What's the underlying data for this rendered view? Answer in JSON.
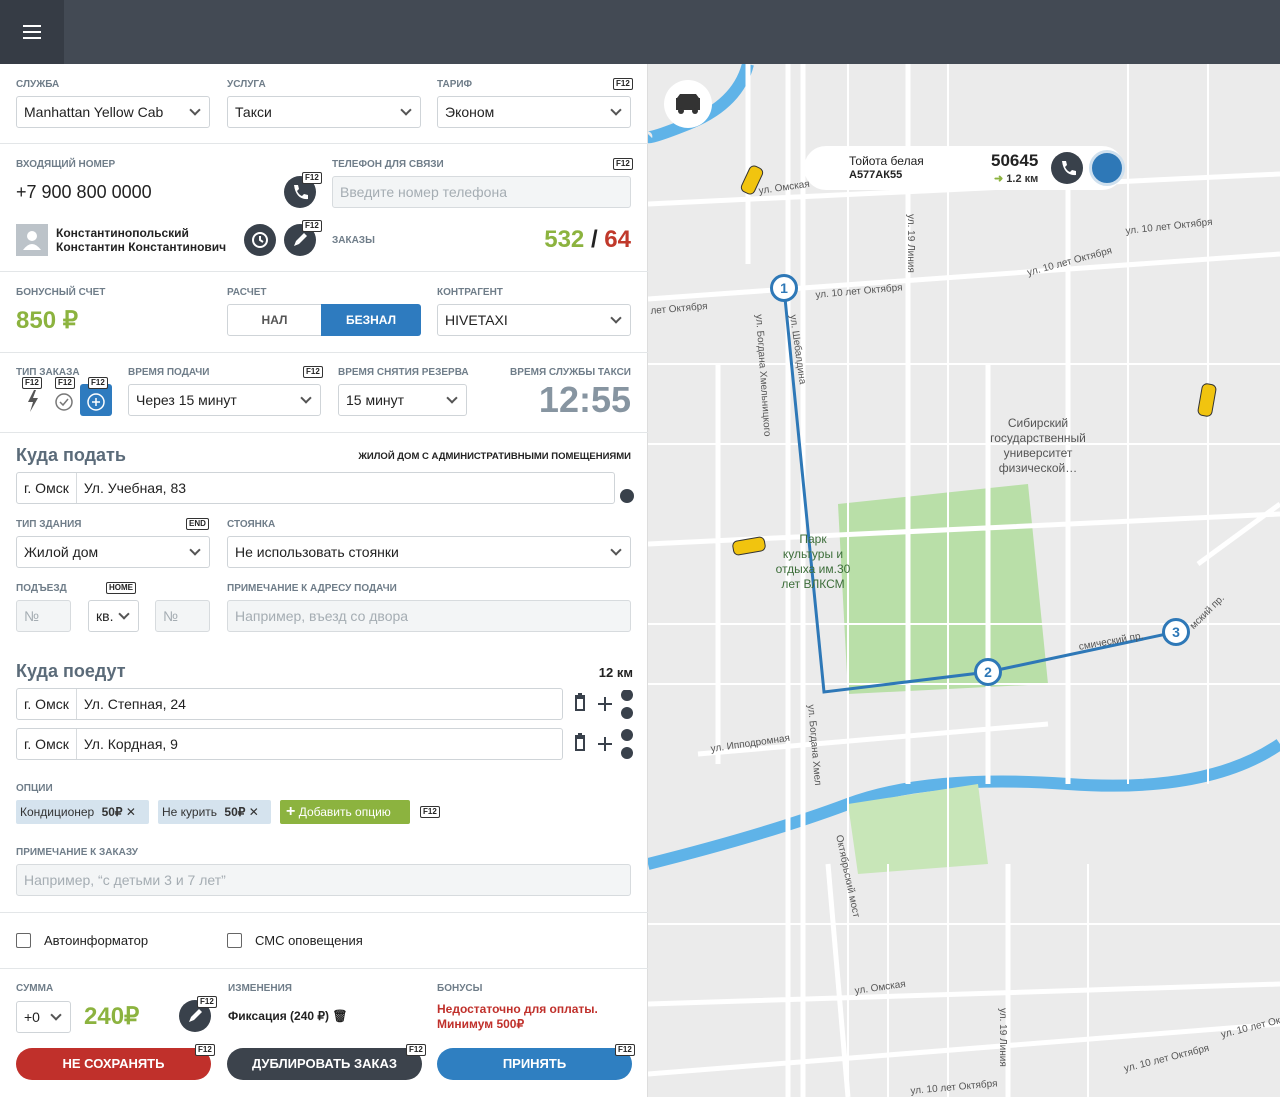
{
  "service": {
    "label": "СЛУЖБА",
    "value": "Manhattan Yellow Cab"
  },
  "usluga": {
    "label": "УСЛУГА",
    "value": "Такси"
  },
  "tariff": {
    "label": "ТАРИФ",
    "value": "Эконом",
    "hotkey": "F12"
  },
  "incoming": {
    "label": "ВХОДЯЩИЙ НОМЕР",
    "value": "+7 900 800 0000",
    "hotkey": "F12"
  },
  "contact_phone": {
    "label": "ТЕЛЕФОН ДЛЯ СВЯЗИ",
    "placeholder": "Введите номер телефона",
    "hotkey": "F12"
  },
  "client": {
    "name": [
      "Константинопольский",
      "Константин Константинович"
    ],
    "edit_hotkey": "F12"
  },
  "orders": {
    "label": "ЗАКАЗЫ",
    "done": 532,
    "separator": "/",
    "cancelled": 64
  },
  "bonus": {
    "label": "БОНУСНЫЙ СЧЕТ",
    "value": "850 ₽"
  },
  "payment": {
    "label": "РАСЧЕТ",
    "options": [
      "НАЛ",
      "БЕЗНАЛ"
    ]
  },
  "counterparty": {
    "label": "КОНТРАГЕНТ",
    "value": "HIVETAXI"
  },
  "order_type": {
    "label": "ТИП ЗАКАЗА",
    "hotkeys": [
      "F12",
      "F12",
      "F12"
    ]
  },
  "pickup_time": {
    "label": "ВРЕМЯ ПОДАЧИ",
    "value": "Через 15 минут",
    "hotkey": "F12"
  },
  "reserve_time": {
    "label": "ВРЕМЯ СНЯТИЯ РЕЗЕРВА",
    "value": "15 минут"
  },
  "service_time": {
    "label": "ВРЕМЯ СЛУЖБЫ ТАКСИ",
    "value": "12:55"
  },
  "pickup": {
    "title": "Куда подать",
    "building_note": "ЖИЛОЙ ДОМ С АДМИНИСТРАТИВНЫМИ ПОМЕЩЕНИЯМИ",
    "city": "г. Омск",
    "address": "Ул. Учебная, 83",
    "building_type": {
      "label": "ТИП ЗДАНИЯ",
      "hotkey": "END",
      "value": "Жилой дом"
    },
    "parking": {
      "label": "СТОЯНКА",
      "value": "Не использовать стоянки"
    },
    "entrance": {
      "label": "ПОДЪЕЗД",
      "placeholder": "№"
    },
    "apartment": {
      "hotkey": "HOME",
      "value": "кв.",
      "placeholder": "№"
    },
    "note": {
      "label": "ПРИМЕЧАНИЕ К АДРЕСУ ПОДАЧИ",
      "placeholder": "Например, въезд со двора"
    }
  },
  "destinations": {
    "title": "Куда поедут",
    "distance": "12 км",
    "stops": [
      {
        "city": "г. Омск",
        "address": "Ул. Степная, 24"
      },
      {
        "city": "г. Омск",
        "address": "Ул. Кордная, 9"
      }
    ]
  },
  "options": {
    "label": "ОПЦИИ",
    "items": [
      {
        "name": "Кондиционер",
        "price": "50₽"
      },
      {
        "name": "Не курить",
        "price": "50₽"
      }
    ],
    "add": "Добавить опцию",
    "hotkey": "F12"
  },
  "order_note": {
    "label": "ПРИМЕЧАНИЕ К ЗАКАЗУ",
    "placeholder": "Например, “с детьми 3 и 7 лет”"
  },
  "checkboxes": [
    "Автоинформатор",
    "СМС оповещения"
  ],
  "total": {
    "label": "СУММА",
    "adjust": "+0",
    "value": "240₽",
    "hotkey": "F12"
  },
  "changes": {
    "label": "ИЗМЕНЕНИЯ",
    "value": "Фиксация (240 ₽)"
  },
  "bonuses": {
    "label": "БОНУСЫ",
    "warning": [
      "Недостаточно для оплаты.",
      "Минимум 500₽"
    ]
  },
  "buttons": [
    {
      "label": "НЕ СОХРАНЯТЬ",
      "hotkey": "F12"
    },
    {
      "label": "ДУБЛИРОВАТЬ ЗАКАЗ",
      "hotkey": "F12"
    },
    {
      "label": "ПРИНЯТЬ",
      "hotkey": "F12"
    }
  ],
  "map": {
    "car": {
      "model": "Тойота белая",
      "plate": "А577АК55",
      "id": "50645",
      "distance": "1.2 км"
    },
    "markers": [
      "1",
      "2",
      "3"
    ],
    "labels": [
      "ул. Омская",
      "ул. 10 лет Октября",
      "ул. 10 лет Октября",
      "ул. 10 лет Октября",
      "лет Октября",
      "ул. 19 Линия",
      "ул. Шебалдина",
      "ул. Богдана Хмельницкого",
      [
        "Сибирский",
        "государственный",
        "университет",
        "физической…"
      ],
      [
        "Парк",
        "культуры и",
        "отдыха им.30",
        "лет ВЛКСМ"
      ],
      "ул. Ипподромная",
      "ул. Богдана Хмел",
      "Октябрьский мост",
      "мский пр.",
      "смический пр.",
      "ул. Омская",
      "ул. 19 Линия",
      "ул. 10 лет Октября",
      "ул. 10 лет Октября",
      "ул. 10 лет Октября"
    ]
  }
}
